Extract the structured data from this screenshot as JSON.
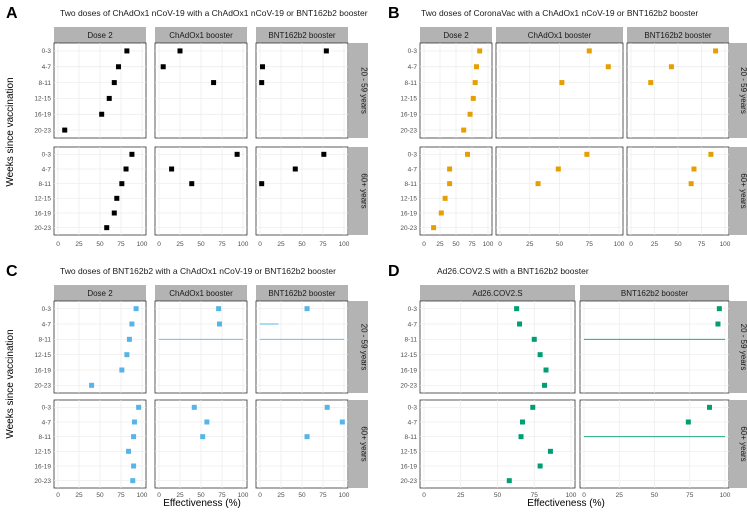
{
  "figure": {
    "y_axis_title": "Weeks since vaccination",
    "x_axis_title": "Effectiveness (%)"
  },
  "chart_data": [
    {
      "letter": "A",
      "title": "Two doses of ChAdOx1 nCoV-19 with a ChAdOx1 nCoV-19 or BNT162b2 booster",
      "type": "scatter",
      "color": "#000000",
      "facet_columns": [
        "Dose 2",
        "ChAdOx1 booster",
        "BNT162b2 booster"
      ],
      "facet_rows": [
        "20 - 59 years",
        "60+ years"
      ],
      "categories": [
        "0-3",
        "4-7",
        "8-11",
        "12-15",
        "16-19",
        "20-23"
      ],
      "xlim": [
        0,
        100
      ],
      "xticks": [
        0,
        25,
        50,
        75,
        100
      ],
      "cells": [
        [
          [
            [
              82,
              null,
              null
            ],
            [
              72,
              null,
              null
            ],
            [
              67,
              null,
              null
            ],
            [
              61,
              null,
              null
            ],
            [
              52,
              null,
              null
            ],
            [
              8,
              null,
              null
            ]
          ],
          [
            [
              25,
              null,
              null
            ],
            [
              5,
              null,
              null
            ],
            [
              65,
              null,
              null
            ],
            null,
            null,
            null
          ],
          [
            [
              79,
              null,
              null
            ],
            [
              3,
              null,
              null
            ],
            [
              2,
              null,
              null
            ],
            null,
            null,
            null
          ]
        ],
        [
          [
            [
              88,
              null,
              null
            ],
            [
              81,
              null,
              null
            ],
            [
              76,
              null,
              null
            ],
            [
              70,
              null,
              null
            ],
            [
              67,
              null,
              null
            ],
            [
              58,
              null,
              null
            ]
          ],
          [
            [
              93,
              null,
              null
            ],
            [
              15,
              null,
              null
            ],
            [
              39,
              null,
              null
            ],
            null,
            null,
            null
          ],
          [
            [
              76,
              null,
              null
            ],
            [
              42,
              null,
              null
            ],
            [
              2,
              null,
              null
            ],
            null,
            null,
            null
          ]
        ]
      ]
    },
    {
      "letter": "B",
      "title": "Two doses of CoronaVac with a ChAdOx1 nCoV-19 or BNT162b2 booster",
      "type": "scatter",
      "color": "#E69F00",
      "facet_columns": [
        "Dose 2",
        "ChAdOx1 booster",
        "BNT162b2 booster"
      ],
      "facet_rows": [
        "20 - 59 years",
        "60+ years"
      ],
      "categories": [
        "0-3",
        "4-7",
        "8-11",
        "12-15",
        "16-19",
        "20-23"
      ],
      "xlim": [
        0,
        100
      ],
      "xticks": [
        0,
        25,
        50,
        75,
        100
      ],
      "cells": [
        [
          [
            [
              87,
              null,
              null
            ],
            [
              82,
              null,
              null
            ],
            [
              80,
              null,
              null
            ],
            [
              77,
              null,
              null
            ],
            [
              72,
              null,
              null
            ],
            [
              62,
              null,
              null
            ]
          ],
          [
            [
              75,
              null,
              null
            ],
            [
              91,
              null,
              null
            ],
            [
              52,
              null,
              null
            ],
            null,
            null,
            null
          ],
          [
            [
              90,
              null,
              null
            ],
            [
              43,
              null,
              null
            ],
            [
              21,
              null,
              null
            ],
            null,
            null,
            null
          ]
        ],
        [
          [
            [
              68,
              null,
              null
            ],
            [
              40,
              null,
              null
            ],
            [
              40,
              null,
              null
            ],
            [
              33,
              null,
              null
            ],
            [
              27,
              null,
              null
            ],
            [
              15,
              null,
              null
            ]
          ],
          [
            [
              73,
              null,
              null
            ],
            [
              49,
              null,
              null
            ],
            [
              32,
              null,
              null
            ],
            null,
            null,
            null
          ],
          [
            [
              85,
              null,
              null
            ],
            [
              67,
              null,
              null
            ],
            [
              64,
              null,
              null
            ],
            null,
            null,
            null
          ]
        ]
      ]
    },
    {
      "letter": "C",
      "title": "Two doses of BNT162b2 with a ChAdOx1 nCoV-19 or BNT162b2 booster",
      "type": "scatter",
      "color": "#56B4E9",
      "facet_columns": [
        "Dose 2",
        "ChAdOx1 booster",
        "BNT162b2 booster"
      ],
      "facet_rows": [
        "20 - 59 years",
        "60+ years"
      ],
      "categories": [
        "0-3",
        "4-7",
        "8-11",
        "12-15",
        "16-19",
        "20-23"
      ],
      "xlim": [
        0,
        100
      ],
      "xticks": [
        0,
        25,
        50,
        75,
        100
      ],
      "cells": [
        [
          [
            [
              93,
              null,
              null
            ],
            [
              88,
              null,
              null
            ],
            [
              85,
              null,
              null
            ],
            [
              82,
              null,
              null
            ],
            [
              76,
              null,
              null
            ],
            [
              40,
              null,
              null
            ]
          ],
          [
            [
              71,
              null,
              null
            ],
            [
              72,
              null,
              null
            ],
            [
              null,
              0,
              100
            ],
            null,
            null,
            null
          ],
          [
            [
              56,
              null,
              null
            ],
            [
              null,
              0,
              22
            ],
            [
              null,
              0,
              100
            ],
            null,
            null,
            null
          ]
        ],
        [
          [
            [
              96,
              null,
              null
            ],
            [
              91,
              null,
              null
            ],
            [
              90,
              null,
              null
            ],
            [
              84,
              null,
              null
            ],
            [
              90,
              null,
              null
            ],
            [
              89,
              null,
              null
            ]
          ],
          [
            [
              42,
              null,
              null
            ],
            [
              57,
              null,
              null
            ],
            [
              52,
              null,
              null
            ],
            null,
            null,
            null
          ],
          [
            [
              80,
              null,
              null
            ],
            [
              98,
              null,
              null
            ],
            [
              56,
              null,
              null
            ],
            null,
            null,
            null
          ]
        ]
      ]
    },
    {
      "letter": "D",
      "title": "Ad26.COV2.S with a BNT162b2 booster",
      "type": "scatter",
      "color": "#009E73",
      "facet_columns": [
        "Ad26.COV2.S",
        "BNT162b2 booster"
      ],
      "facet_rows": [
        "20 - 59 years",
        "60+ years"
      ],
      "categories": [
        "0-3",
        "4-7",
        "8-11",
        "12-15",
        "16-19",
        "20-23"
      ],
      "xlim": [
        0,
        100
      ],
      "xticks": [
        0,
        25,
        50,
        75,
        100
      ],
      "cells": [
        [
          [
            [
              63,
              null,
              null
            ],
            [
              65,
              null,
              null
            ],
            [
              75,
              null,
              null
            ],
            [
              79,
              null,
              null
            ],
            [
              83,
              null,
              null
            ],
            [
              82,
              null,
              null
            ]
          ],
          [
            [
              96,
              null,
              null
            ],
            [
              95,
              null,
              null
            ],
            [
              null,
              0,
              100
            ],
            null,
            null,
            null
          ]
        ],
        [
          [
            [
              74,
              null,
              null
            ],
            [
              67,
              null,
              null
            ],
            [
              66,
              null,
              null
            ],
            [
              86,
              null,
              null
            ],
            [
              79,
              null,
              null
            ],
            [
              58,
              null,
              null
            ]
          ],
          [
            [
              89,
              null,
              null
            ],
            [
              74,
              null,
              null
            ],
            [
              null,
              0,
              100
            ],
            null,
            null,
            null
          ]
        ]
      ]
    }
  ]
}
